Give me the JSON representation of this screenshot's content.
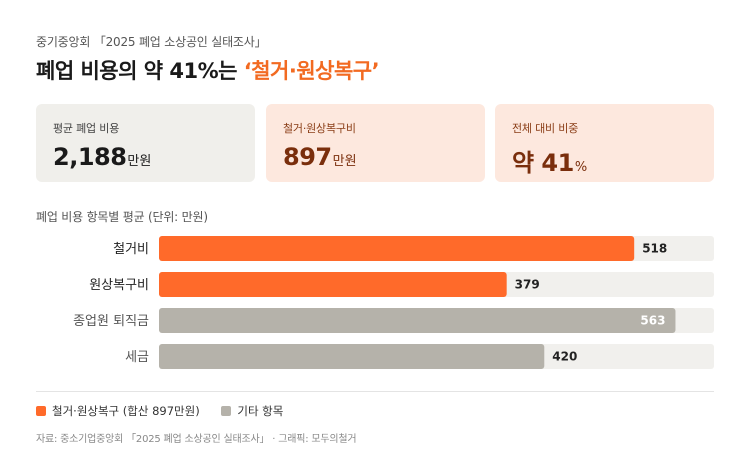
{
  "header": {
    "source_line": "중기중앙회 「2025 폐업 소상공인 실태조사」",
    "headline_prefix": "폐업 비용의 약 41%는 ",
    "headline_highlight": "‘철거·원상복구’"
  },
  "cards": [
    {
      "label": "평균 폐업 비용",
      "value": "2,188",
      "unit": "만원"
    },
    {
      "label": "철거·원상복구비",
      "value": "897",
      "unit": "만원"
    },
    {
      "label": "전체 대비 비중",
      "value": "약 41",
      "unit": "%"
    }
  ],
  "chart_data": {
    "type": "bar",
    "orientation": "horizontal",
    "title": "폐업 비용 항목별 평균 (단위: 만원)",
    "categories": [
      "철거비",
      "원상복구비",
      "종업원 퇴직금",
      "세금"
    ],
    "values": [
      518,
      379,
      563,
      420
    ],
    "groups": [
      "철거·원상복구",
      "철거·원상복구",
      "기타 항목",
      "기타 항목"
    ],
    "xlim": [
      0,
      605
    ],
    "grid": false,
    "legend_position": "bottom-left",
    "colors": {
      "highlight": "#ff6a2a",
      "other": "#b5b2aa",
      "track": "#f1f0ed"
    }
  },
  "legend": [
    {
      "label": "철거·원상복구 (합산 897만원)",
      "color": "#ff6a2a"
    },
    {
      "label": "기타 항목",
      "color": "#b5b2aa"
    }
  ],
  "footer": "자료: 중소기업중앙회 「2025 폐업 소상공인 실태조사」 · 그래픽: 모두의철거"
}
